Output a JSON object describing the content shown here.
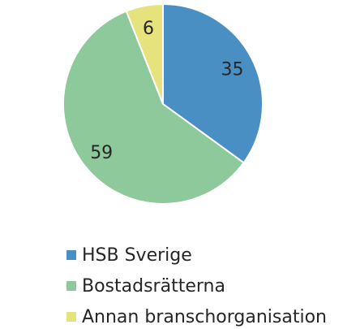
{
  "chart_data": {
    "type": "pie",
    "categories": [
      "HSB Sverige",
      "Bostadsrätterna",
      "Annan branschorganisation"
    ],
    "values": [
      35,
      59,
      6
    ],
    "colors": [
      "#4a8fc4",
      "#8dc99b",
      "#e6e27c"
    ]
  }
}
